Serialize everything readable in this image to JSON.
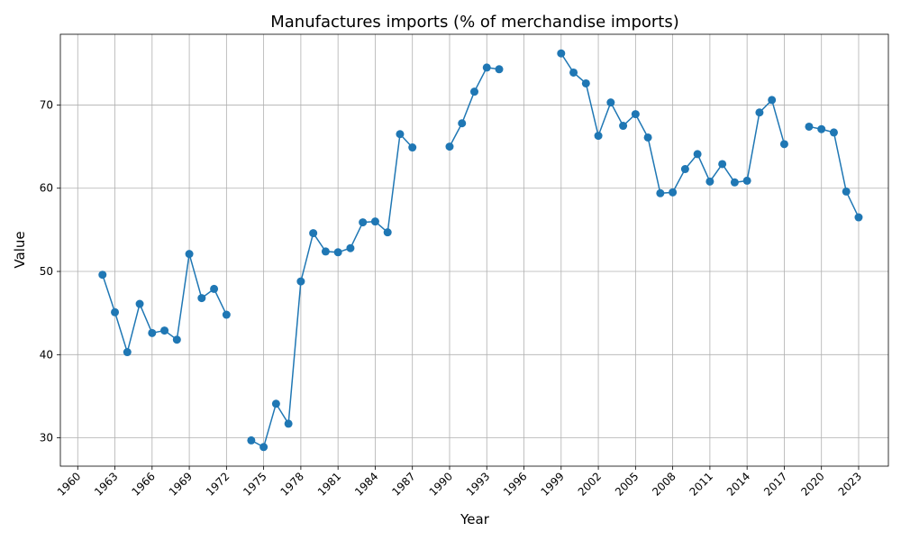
{
  "chart_data": {
    "type": "line",
    "title": "Manufactures imports (% of merchandise imports)",
    "xlabel": "Year",
    "ylabel": "Value",
    "xlim": [
      1958.6,
      2025.4
    ],
    "ylim": [
      26.6,
      78.5
    ],
    "xticks": [
      1960,
      1963,
      1966,
      1969,
      1972,
      1975,
      1978,
      1981,
      1984,
      1987,
      1990,
      1993,
      1996,
      1999,
      2002,
      2005,
      2008,
      2011,
      2014,
      2017,
      2020,
      2023
    ],
    "yticks": [
      30,
      40,
      50,
      60,
      70
    ],
    "grid": true,
    "series": [
      {
        "color": "#1f77b4",
        "x": [
          1962,
          1963,
          1964,
          1965,
          1966,
          1967,
          1968,
          1969,
          1970,
          1971,
          1972,
          1973,
          1974,
          1975,
          1976,
          1977,
          1978,
          1979,
          1980,
          1981,
          1982,
          1983,
          1984,
          1985,
          1986,
          1987,
          1988,
          1989,
          1990,
          1991,
          1992,
          1993,
          1994,
          1995,
          1996,
          1997,
          1998,
          1999,
          2000,
          2001,
          2002,
          2003,
          2004,
          2005,
          2006,
          2007,
          2008,
          2009,
          2010,
          2011,
          2012,
          2013,
          2014,
          2015,
          2016,
          2017,
          2018,
          2019,
          2020,
          2021,
          2022,
          2023
        ],
        "y": [
          49.6,
          45.1,
          40.3,
          46.1,
          42.6,
          42.9,
          41.8,
          52.1,
          46.8,
          47.9,
          44.8,
          null,
          29.7,
          28.9,
          34.1,
          31.7,
          48.8,
          54.6,
          52.4,
          52.3,
          52.8,
          55.9,
          56.0,
          54.7,
          66.5,
          64.9,
          null,
          null,
          65.0,
          67.8,
          71.6,
          74.5,
          74.3,
          null,
          null,
          null,
          null,
          76.2,
          73.9,
          72.6,
          66.3,
          70.3,
          67.5,
          68.9,
          66.1,
          59.4,
          59.5,
          62.3,
          64.1,
          60.8,
          62.9,
          60.7,
          60.9,
          69.1,
          70.6,
          65.3,
          null,
          67.4,
          67.1,
          66.7,
          59.6,
          56.5
        ]
      }
    ]
  }
}
